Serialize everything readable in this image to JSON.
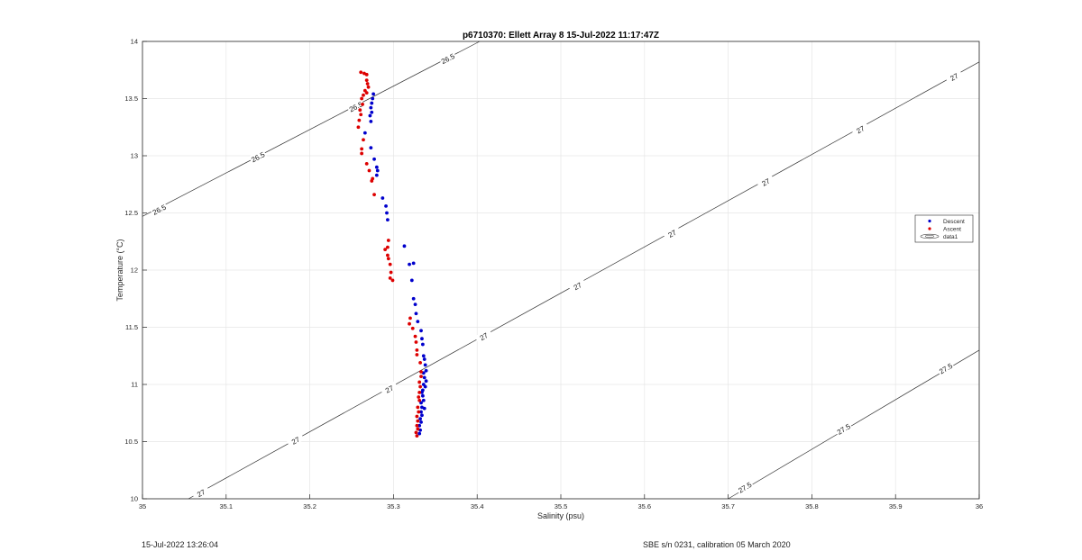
{
  "footer": {
    "timestamp": "15-Jul-2022 13:26:04",
    "calibration": "SBE s/n 0231, calibration 05 March 2020"
  },
  "chart_data": {
    "type": "scatter",
    "title": "p6710370: Ellett Array 8 15-Jul-2022 11:17:47Z",
    "xlabel": "Salinity (psu)",
    "ylabel": "Temperature (°C)",
    "xlim": [
      35,
      36
    ],
    "ylim": [
      10,
      14
    ],
    "xticks": [
      "35",
      "35.1",
      "35.2",
      "35.3",
      "35.4",
      "35.5",
      "35.6",
      "35.7",
      "35.8",
      "35.9",
      "36"
    ],
    "yticks": [
      "10",
      "10.5",
      "11",
      "11.5",
      "12",
      "12.5",
      "13",
      "13.5",
      "14"
    ],
    "grid": true,
    "legend": {
      "placement": "right",
      "entries": [
        "Descent",
        "Ascent",
        "data1"
      ]
    },
    "series": [
      {
        "name": "Descent",
        "color": "#0000cc",
        "points": [
          [
            35.276,
            13.54
          ],
          [
            35.275,
            13.5
          ],
          [
            35.274,
            13.46
          ],
          [
            35.273,
            13.42
          ],
          [
            35.274,
            13.38
          ],
          [
            35.272,
            13.35
          ],
          [
            35.273,
            13.3
          ],
          [
            35.266,
            13.2
          ],
          [
            35.273,
            13.07
          ],
          [
            35.277,
            12.97
          ],
          [
            35.28,
            12.9
          ],
          [
            35.281,
            12.87
          ],
          [
            35.28,
            12.83
          ],
          [
            35.287,
            12.63
          ],
          [
            35.291,
            12.56
          ],
          [
            35.292,
            12.5
          ],
          [
            35.293,
            12.44
          ],
          [
            35.313,
            12.21
          ],
          [
            35.319,
            12.05
          ],
          [
            35.324,
            12.06
          ],
          [
            35.322,
            11.91
          ],
          [
            35.324,
            11.75
          ],
          [
            35.326,
            11.7
          ],
          [
            35.327,
            11.62
          ],
          [
            35.329,
            11.55
          ],
          [
            35.333,
            11.47
          ],
          [
            35.334,
            11.4
          ],
          [
            35.335,
            11.35
          ],
          [
            35.336,
            11.25
          ],
          [
            35.337,
            11.22
          ],
          [
            35.338,
            11.17
          ],
          [
            35.339,
            11.12
          ],
          [
            35.336,
            11.1
          ],
          [
            35.337,
            11.06
          ],
          [
            35.339,
            11.03
          ],
          [
            35.336,
            11.0
          ],
          [
            35.338,
            10.98
          ],
          [
            35.335,
            10.95
          ],
          [
            35.334,
            10.93
          ],
          [
            35.335,
            10.9
          ],
          [
            35.336,
            10.86
          ],
          [
            35.333,
            10.84
          ],
          [
            35.334,
            10.8
          ],
          [
            35.337,
            10.79
          ],
          [
            35.333,
            10.76
          ],
          [
            35.334,
            10.73
          ],
          [
            35.332,
            10.7
          ],
          [
            35.333,
            10.67
          ],
          [
            35.331,
            10.64
          ],
          [
            35.332,
            10.6
          ],
          [
            35.331,
            10.57
          ]
        ]
      },
      {
        "name": "Ascent",
        "color": "#dd0000",
        "points": [
          [
            35.261,
            13.73
          ],
          [
            35.265,
            13.72
          ],
          [
            35.268,
            13.71
          ],
          [
            35.268,
            13.66
          ],
          [
            35.269,
            13.63
          ],
          [
            35.27,
            13.6
          ],
          [
            35.266,
            13.57
          ],
          [
            35.268,
            13.55
          ],
          [
            35.264,
            13.53
          ],
          [
            35.262,
            13.5
          ],
          [
            35.263,
            13.45
          ],
          [
            35.26,
            13.4
          ],
          [
            35.261,
            13.36
          ],
          [
            35.259,
            13.31
          ],
          [
            35.258,
            13.25
          ],
          [
            35.264,
            13.14
          ],
          [
            35.262,
            13.06
          ],
          [
            35.262,
            13.02
          ],
          [
            35.268,
            12.93
          ],
          [
            35.271,
            12.87
          ],
          [
            35.275,
            12.8
          ],
          [
            35.274,
            12.78
          ],
          [
            35.277,
            12.66
          ],
          [
            35.294,
            12.26
          ],
          [
            35.293,
            12.2
          ],
          [
            35.29,
            12.18
          ],
          [
            35.293,
            12.13
          ],
          [
            35.294,
            12.1
          ],
          [
            35.296,
            12.05
          ],
          [
            35.297,
            11.98
          ],
          [
            35.296,
            11.93
          ],
          [
            35.299,
            11.91
          ],
          [
            35.32,
            11.58
          ],
          [
            35.319,
            11.53
          ],
          [
            35.323,
            11.49
          ],
          [
            35.326,
            11.42
          ],
          [
            35.327,
            11.37
          ],
          [
            35.328,
            11.3
          ],
          [
            35.328,
            11.26
          ],
          [
            35.332,
            11.19
          ],
          [
            35.333,
            11.11
          ],
          [
            35.333,
            11.07
          ],
          [
            35.331,
            11.02
          ],
          [
            35.332,
            10.98
          ],
          [
            35.331,
            10.93
          ],
          [
            35.33,
            10.89
          ],
          [
            35.331,
            10.86
          ],
          [
            35.329,
            10.8
          ],
          [
            35.33,
            10.76
          ],
          [
            35.328,
            10.72
          ],
          [
            35.329,
            10.68
          ],
          [
            35.328,
            10.64
          ],
          [
            35.329,
            10.61
          ],
          [
            35.327,
            10.58
          ],
          [
            35.328,
            10.55
          ]
        ]
      }
    ],
    "contours": [
      {
        "level": "26.5",
        "line": [
          [
            35.0,
            12.47
          ],
          [
            35.403,
            14.0
          ]
        ],
        "labels": [
          [
            35.02,
            12.53
          ],
          [
            35.138,
            12.99
          ],
          [
            35.255,
            13.43
          ],
          [
            35.365,
            13.85
          ]
        ]
      },
      {
        "level": "27",
        "line": [
          [
            35.055,
            10.0
          ],
          [
            36.0,
            13.82
          ]
        ],
        "labels": [
          [
            35.07,
            10.05
          ],
          [
            35.183,
            10.51
          ],
          [
            35.295,
            10.96
          ],
          [
            35.408,
            11.42
          ],
          [
            35.52,
            11.86
          ],
          [
            35.633,
            12.32
          ],
          [
            35.745,
            12.77
          ],
          [
            35.858,
            13.23
          ],
          [
            35.97,
            13.69
          ]
        ]
      },
      {
        "level": "27.5",
        "line": [
          [
            35.7,
            10.0
          ],
          [
            36.0,
            11.3
          ]
        ],
        "labels": [
          [
            35.72,
            10.1
          ],
          [
            35.838,
            10.61
          ],
          [
            35.96,
            11.14
          ]
        ]
      }
    ]
  }
}
